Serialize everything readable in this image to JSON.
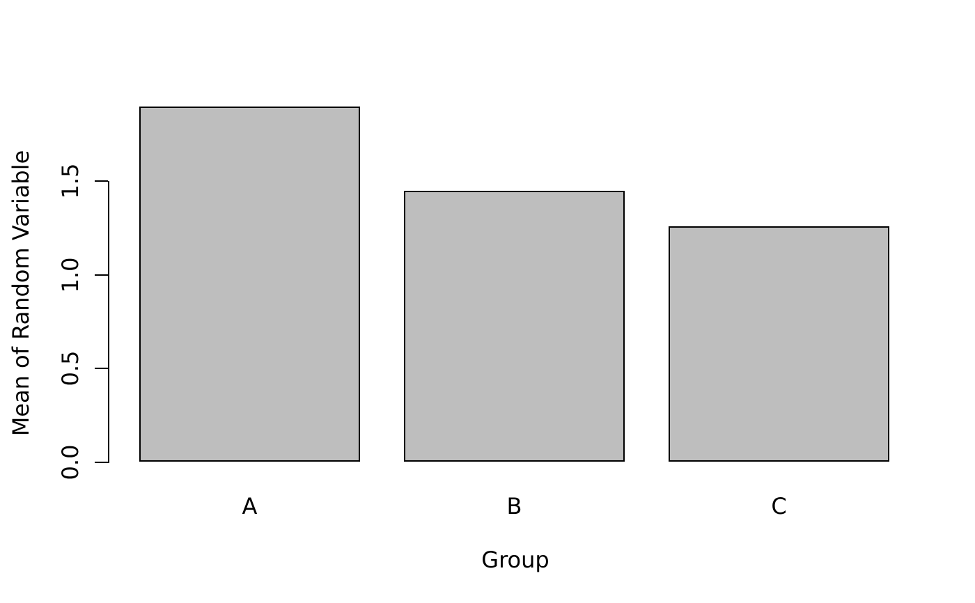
{
  "chart_data": {
    "type": "bar",
    "title": "",
    "categories": [
      "A",
      "B",
      "C"
    ],
    "values": [
      1.9,
      1.45,
      1.26
    ],
    "xlabel": "Group",
    "ylabel": "Mean of Random Variable",
    "yticks": [
      0.0,
      0.5,
      1.0,
      1.5
    ],
    "ytick_labels": [
      "0.0",
      "0.5",
      "1.0",
      "1.5"
    ],
    "ylim": [
      0,
      1.9
    ],
    "grid": false,
    "legend": null,
    "colors": {
      "bar_fill": "#bebebe",
      "bar_border": "#000000",
      "axis": "#000000",
      "background": "#ffffff"
    }
  }
}
